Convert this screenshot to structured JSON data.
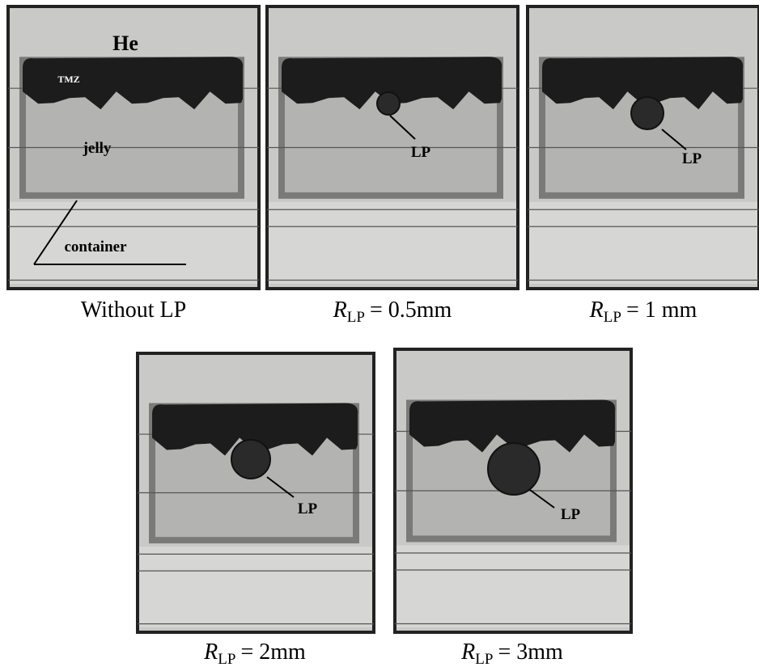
{
  "panels": [
    {
      "caption": {
        "text": "Without LP"
      },
      "labels": [
        "He",
        "TMZ",
        "jelly",
        "container"
      ]
    },
    {
      "caption": {
        "symbol": "R",
        "subscript": "LP",
        "text": "= 0.5mm"
      },
      "labels": [
        "LP"
      ]
    },
    {
      "caption": {
        "symbol": "R",
        "subscript": "LP",
        "text": "= 1 mm"
      },
      "labels": [
        "LP"
      ]
    },
    {
      "caption": {
        "symbol": "R",
        "subscript": "LP",
        "text": "= 2mm"
      },
      "labels": [
        "LP"
      ]
    },
    {
      "caption": {
        "symbol": "R",
        "subscript": "LP",
        "text": "= 3mm"
      },
      "labels": [
        "LP"
      ]
    }
  ]
}
